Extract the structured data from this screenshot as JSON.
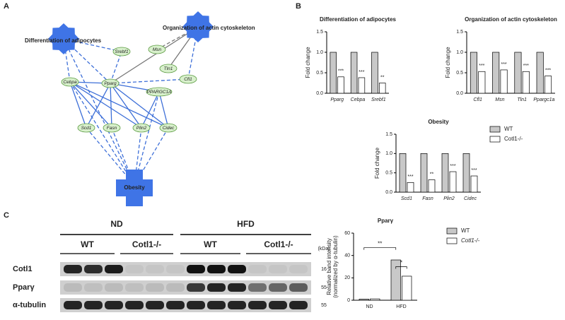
{
  "panel_labels": [
    "A",
    "B",
    "C"
  ],
  "network": {
    "nodes": [
      "Differentiation of adipocytes",
      "Organization of actin cytoskeleton",
      "Obesity",
      "Srebf1",
      "Msn",
      "Tln1",
      "Cfl1",
      "Cebpa",
      "Pparg",
      "PPARGC1A",
      "Scd1",
      "Fasn",
      "Plin2",
      "Cidec"
    ]
  },
  "chart_data": [
    {
      "type": "bar",
      "title": "Differentiation of adipocytes",
      "ylabel": "Fold change",
      "categories": [
        "Pparg",
        "Cebpa",
        "Srebf1"
      ],
      "series": [
        {
          "color": "#c8c8c8",
          "values": [
            1,
            1,
            1
          ]
        },
        {
          "color": "#ffffff",
          "values": [
            0.4,
            0.38,
            0.25
          ]
        }
      ],
      "significance": [
        "***",
        "***",
        "**"
      ],
      "ylim": [
        0,
        1.5
      ],
      "yticks": [
        {
          "value": 0,
          "label": "0.0"
        },
        {
          "value": 0.5,
          "label": "0.5"
        },
        {
          "value": 1,
          "label": "1.0"
        },
        {
          "value": 1.5,
          "label": "1.5"
        }
      ]
    },
    {
      "type": "bar",
      "title": "Organization of actin cytoskeleton",
      "ylabel": "Fold change",
      "categories": [
        "Cfl1",
        "Msn",
        "Tln1",
        "Ppargc1a"
      ],
      "series": [
        {
          "color": "#c8c8c8",
          "values": [
            1,
            1,
            1,
            1
          ]
        },
        {
          "color": "#ffffff",
          "values": [
            0.53,
            0.57,
            0.53,
            0.42
          ]
        }
      ],
      "significance": [
        "***",
        "***",
        "***",
        "***"
      ],
      "ylim": [
        0,
        1.5
      ],
      "yticks": [
        {
          "value": 0,
          "label": "0.0"
        },
        {
          "value": 0.5,
          "label": "0.5"
        },
        {
          "value": 1,
          "label": "1.0"
        },
        {
          "value": 1.5,
          "label": "1.5"
        }
      ]
    },
    {
      "type": "bar",
      "title": "Obesity",
      "ylabel": "Fold change",
      "categories": [
        "Scd1",
        "Fasn",
        "Plin2",
        "Cidec"
      ],
      "series": [
        {
          "name": "WT",
          "color": "#c8c8c8",
          "values": [
            1,
            1,
            1,
            1
          ]
        },
        {
          "name": "Cotl1-/-",
          "color": "#ffffff",
          "values": [
            0.25,
            0.32,
            0.53,
            0.42
          ]
        }
      ],
      "significance": [
        "***",
        "**",
        "***",
        "***"
      ],
      "ylim": [
        0,
        1.5
      ],
      "legend": "right",
      "yticks": [
        {
          "value": 0,
          "label": "0.0"
        },
        {
          "value": 0.5,
          "label": "0.5"
        },
        {
          "value": 1,
          "label": "1.0"
        },
        {
          "value": 1.5,
          "label": "1.5"
        }
      ]
    },
    {
      "type": "bar",
      "title": "Pparγ",
      "ylabel": [
        "Relative band intensity",
        "(normalized by α-tubulin)"
      ],
      "categories": [
        "ND",
        "HFD"
      ],
      "series": [
        {
          "name": "WT",
          "color": "#c8c8c8",
          "values": [
            1,
            36
          ]
        },
        {
          "name": "Cotl1-/-",
          "color": "#ffffff",
          "values": [
            1.2,
            21.5
          ]
        }
      ],
      "annotations": [
        "**",
        "*"
      ],
      "ylim": [
        0,
        60
      ],
      "yticks": [
        0,
        20,
        40,
        60
      ],
      "legend": "right"
    }
  ],
  "blot": {
    "conditions": [
      "ND",
      "HFD"
    ],
    "genotypes": [
      "WT",
      "Cotl1-/-",
      "WT",
      "Cotl1-/-"
    ],
    "unit": "(kDa)",
    "rows": [
      {
        "name": "Cotl1",
        "kda": 16
      },
      {
        "name": "Pparγ",
        "kda": 55
      },
      {
        "name": "α-tubulin",
        "kda": 55
      }
    ]
  }
}
